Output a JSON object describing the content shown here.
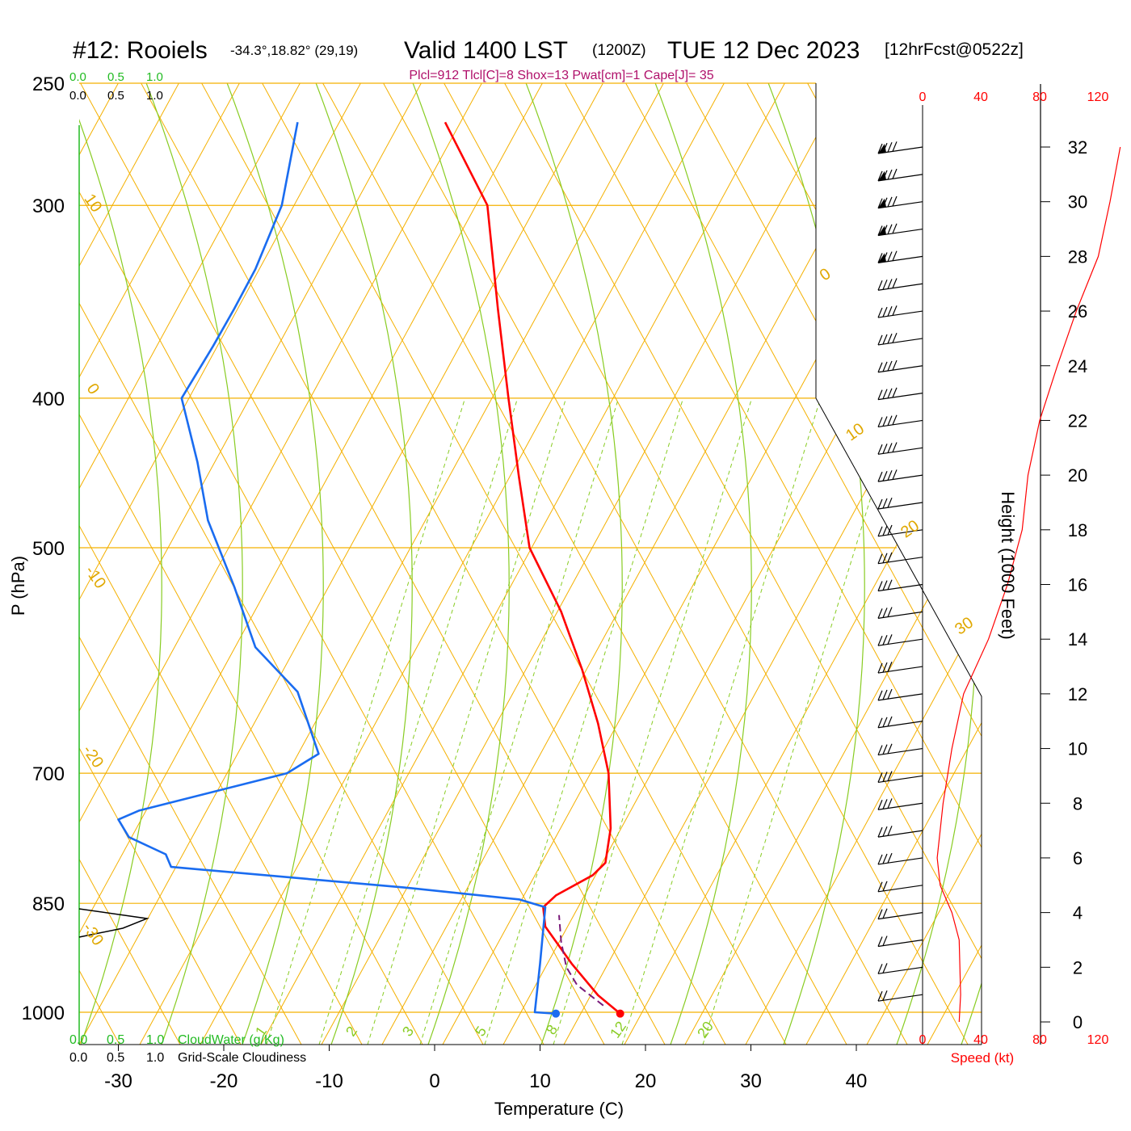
{
  "header": {
    "station": "#12: Rooiels",
    "coords": "-34.3°,18.82° (29,19)",
    "valid": "Valid 1400 LST",
    "utc": "(1200Z)",
    "date": "TUE 12 Dec 2023",
    "forecast": "[12hrFcst@0522z]"
  },
  "indices": "Plcl=912 Tlcl[C]=8 Shox=13 Pwat[cm]=1 Cape[J]= 35",
  "scales": {
    "top_green": [
      "0.0",
      "0.5",
      "1.0"
    ],
    "top_black": [
      "0.0",
      "0.5",
      "1.0"
    ],
    "bottom_green": [
      "0.0",
      "0.5",
      "1.0"
    ],
    "bottom_black": [
      "0.0",
      "0.5",
      "1.0"
    ],
    "cloud_water_label": "CloudWater (g/Kg)",
    "cloudiness_label": "Grid-Scale Cloudiness",
    "speed_ticks": [
      "0",
      "40",
      "80",
      "120"
    ],
    "speed_label": "Speed (kt)"
  },
  "chart_data": {
    "type": "line",
    "title": "#12: Rooiels",
    "xlabel": "Temperature (C)",
    "ylabel": "P (hPa)",
    "y2label": "Height (1000 Feet)",
    "xlim": [
      -30,
      40
    ],
    "ylim_hpa": [
      1000,
      250
    ],
    "x_ticks": [
      "-30",
      "-20",
      "-10",
      "0",
      "10",
      "20",
      "30",
      "40"
    ],
    "p_ticks": [
      "250",
      "300",
      "400",
      "500",
      "700",
      "850",
      "1000"
    ],
    "height_ticks": [
      "0",
      "2",
      "4",
      "6",
      "8",
      "10",
      "12",
      "14",
      "16",
      "18",
      "20",
      "22",
      "24",
      "26",
      "28",
      "30",
      "32"
    ],
    "isotherm_labels": [
      "10",
      "0",
      "-10",
      "-20",
      "-30",
      "0",
      "10",
      "20",
      "30"
    ],
    "mixing_ratio_labels": [
      "1",
      "2",
      "3",
      "5",
      "8",
      "12",
      "20"
    ],
    "series": [
      {
        "name": "",
        "color": "#ff0000",
        "points": [
          [
            17.6,
            1002
          ],
          [
            15.5,
            975
          ],
          [
            13.0,
            930
          ],
          [
            10.5,
            880
          ],
          [
            10.3,
            855
          ],
          [
            11.5,
            840
          ],
          [
            15.0,
            815
          ],
          [
            16.2,
            800
          ],
          [
            16.7,
            760
          ],
          [
            16.5,
            700
          ],
          [
            15.5,
            650
          ],
          [
            14.0,
            600
          ],
          [
            12.0,
            550
          ],
          [
            9.0,
            500
          ],
          [
            8.0,
            450
          ],
          [
            7.0,
            400
          ],
          [
            6.0,
            350
          ],
          [
            5.0,
            300
          ],
          [
            1.0,
            265
          ]
        ]
      },
      {
        "name": "",
        "color": "#1a6cf0",
        "points": [
          [
            11.5,
            1002
          ],
          [
            9.5,
            1000
          ],
          [
            10.0,
            930
          ],
          [
            10.5,
            855
          ],
          [
            8.0,
            845
          ],
          [
            -3.0,
            830
          ],
          [
            -25.0,
            805
          ],
          [
            -25.5,
            790
          ],
          [
            -29.0,
            770
          ],
          [
            -30.0,
            750
          ],
          [
            -28.0,
            740
          ],
          [
            -14.0,
            700
          ],
          [
            -11.0,
            680
          ],
          [
            -13.0,
            620
          ],
          [
            -17.0,
            580
          ],
          [
            -19.0,
            530
          ],
          [
            -21.5,
            480
          ],
          [
            -22.5,
            440
          ],
          [
            -24.0,
            400
          ],
          [
            -21.0,
            370
          ],
          [
            -19.0,
            350
          ],
          [
            -17.0,
            330
          ],
          [
            -14.5,
            300
          ],
          [
            -13.0,
            265
          ]
        ]
      },
      {
        "name": "",
        "color": "#7a1a7a",
        "points": [
          [
            16.0,
            990
          ],
          [
            13.5,
            960
          ],
          [
            12.5,
            935
          ],
          [
            12.0,
            900
          ],
          [
            11.8,
            865
          ]
        ]
      }
    ],
    "markers": [
      {
        "name": "surface-temperature",
        "t": 17.6,
        "p": 1002,
        "color": "#ff0000"
      },
      {
        "name": "surface-dewpoint",
        "t": 11.5,
        "p": 1002,
        "color": "#1a6cf0"
      }
    ],
    "wind_speed_profile_kt": [
      [
        0,
        25
      ],
      [
        1,
        26
      ],
      [
        3,
        25
      ],
      [
        4,
        20
      ],
      [
        5,
        12
      ],
      [
        6,
        10
      ],
      [
        8,
        14
      ],
      [
        10,
        20
      ],
      [
        12,
        28
      ],
      [
        14,
        45
      ],
      [
        16,
        58
      ],
      [
        18,
        68
      ],
      [
        20,
        72
      ],
      [
        22,
        80
      ],
      [
        24,
        92
      ],
      [
        26,
        105
      ],
      [
        28,
        120
      ],
      [
        30,
        128
      ],
      [
        32,
        135
      ]
    ],
    "wind_barb_heights_kft": [
      1,
      2,
      3,
      4,
      5,
      6,
      7,
      8,
      9,
      10,
      11,
      12,
      13,
      14,
      15,
      16,
      17,
      18,
      19,
      20,
      21,
      22,
      23,
      24,
      25,
      26,
      27,
      28,
      29,
      30,
      31,
      32
    ]
  }
}
